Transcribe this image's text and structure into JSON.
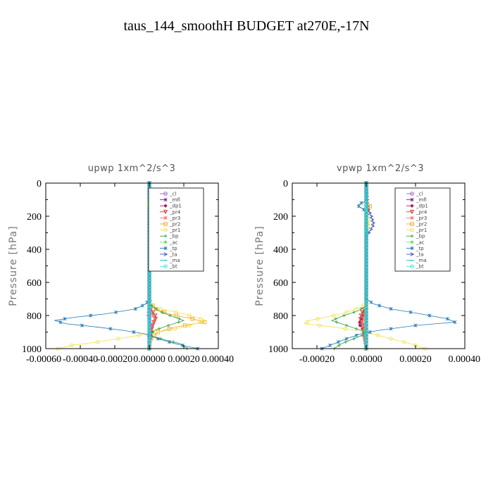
{
  "title": "taus_144_smoothH  BUDGET at270E,-17N",
  "colors": {
    "cl": "#9a5cc6",
    "mfl": "#7a1e8c",
    "dp1": "#a0205a",
    "pr4": "#d9302c",
    "pr3": "#f07070",
    "pr2": "#f5a623",
    "pr1": "#f2e04a",
    "bp": "#2ea043",
    "ac": "#6ee06e",
    "tp": "#1f77b4",
    "ta": "#3f4fc0",
    "ma": "#2bb5c8",
    "bt": "#3ee0e8"
  },
  "chart_data": [
    {
      "type": "line",
      "title": "upwp   1xm^2/s^3",
      "ylabel": "Pressure [hPa]",
      "xlabel": "",
      "xlim": [
        -0.0006,
        0.0004
      ],
      "ylim": [
        1000,
        0
      ],
      "xticks": [
        -0.0006,
        -0.0004,
        -0.0002,
        0.0,
        0.0002,
        0.0004
      ],
      "xtick_labels": [
        "-0.00060",
        "-0.00040",
        "-0.00020",
        "0.00000",
        "0.00020",
        "0.00040"
      ],
      "yticks": [
        0,
        200,
        400,
        600,
        800,
        1000
      ],
      "ytick_labels": [
        "0",
        "200",
        "400",
        "600",
        "800",
        "1000"
      ],
      "legend": {
        "placement": "top-right",
        "entries": [
          "_cl",
          "_mfl",
          "_dp1",
          "_pr4",
          "_pr3",
          "_pr2",
          "_pr1",
          "_bp",
          "_ac",
          "_tp",
          "_ta",
          "_ma",
          "_bt"
        ]
      },
      "series": [
        {
          "key": "cl",
          "name": "_cl",
          "points": [
            [
              0,
              0
            ],
            [
              0,
              1000
            ]
          ]
        },
        {
          "key": "mfl",
          "name": "_mfl",
          "points": [
            [
              0,
              0
            ],
            [
              0,
              1000
            ]
          ]
        },
        {
          "key": "dp1",
          "name": "_dp1",
          "points": [
            [
              0,
              0
            ],
            [
              0,
              700
            ],
            [
              -5e-06,
              800
            ],
            [
              1e-05,
              900
            ],
            [
              0,
              1000
            ]
          ]
        },
        {
          "key": "pr4",
          "name": "_pr4",
          "points": [
            [
              0,
              0
            ],
            [
              0,
              700
            ],
            [
              1e-05,
              760
            ],
            [
              4e-05,
              810
            ],
            [
              2e-05,
              860
            ],
            [
              5e-06,
              920
            ],
            [
              0,
              1000
            ]
          ]
        },
        {
          "key": "pr3",
          "name": "_pr3",
          "points": [
            [
              0,
              0
            ],
            [
              0,
              720
            ],
            [
              1e-05,
              780
            ],
            [
              3e-05,
              820
            ],
            [
              1e-05,
              870
            ],
            [
              0,
              1000
            ]
          ]
        },
        {
          "key": "pr2",
          "name": "_pr2",
          "points": [
            [
              0,
              0
            ],
            [
              0,
              720
            ],
            [
              4e-05,
              760
            ],
            [
              0.00011,
              790
            ],
            [
              0.00025,
              820
            ],
            [
              0.00032,
              840
            ],
            [
              0.00015,
              870
            ],
            [
              5e-05,
              900
            ],
            [
              0,
              950
            ],
            [
              0,
              1000
            ]
          ]
        },
        {
          "key": "pr1",
          "name": "_pr1",
          "points": [
            [
              0,
              0
            ],
            [
              0,
              120
            ],
            [
              -1.5e-05,
              130
            ],
            [
              0,
              140
            ],
            [
              0,
              720
            ],
            [
              2e-05,
              750
            ],
            [
              0.0002,
              790
            ],
            [
              0.00033,
              830
            ],
            [
              0.0002,
              870
            ],
            [
              5e-05,
              900
            ],
            [
              -6e-05,
              920
            ],
            [
              -0.00018,
              940
            ],
            [
              -0.0003,
              960
            ],
            [
              -0.00045,
              980
            ],
            [
              -0.00053,
              1000
            ]
          ]
        },
        {
          "key": "bp",
          "name": "_bp",
          "points": [
            [
              0,
              0
            ],
            [
              0,
              730
            ],
            [
              5e-05,
              770
            ],
            [
              0.00012,
              800
            ],
            [
              0.0002,
              830
            ],
            [
              0.00011,
              860
            ],
            [
              3e-05,
              890
            ],
            [
              0,
              920
            ],
            [
              0.0001,
              950
            ],
            [
              0.00018,
              970
            ],
            [
              0.00022,
              1000
            ]
          ]
        },
        {
          "key": "ac",
          "name": "_ac",
          "points": [
            [
              0,
              0
            ],
            [
              0,
              1000
            ]
          ]
        },
        {
          "key": "tp",
          "name": "_tp",
          "points": [
            [
              0,
              0
            ],
            [
              0,
              100
            ],
            [
              1.5e-05,
              115
            ],
            [
              3.5e-05,
              125
            ],
            [
              2e-05,
              140
            ],
            [
              0,
              160
            ],
            [
              0,
              700
            ],
            [
              -2e-05,
              730
            ],
            [
              -8e-05,
              760
            ],
            [
              -0.00025,
              790
            ],
            [
              -0.00043,
              810
            ],
            [
              -0.00055,
              830
            ],
            [
              -0.00048,
              850
            ],
            [
              -0.0003,
              870
            ],
            [
              -0.00015,
              890
            ],
            [
              -3e-05,
              910
            ],
            [
              5e-05,
              940
            ],
            [
              0.00015,
              970
            ],
            [
              0.00028,
              1000
            ]
          ]
        },
        {
          "key": "ta",
          "name": "_ta",
          "points": [
            [
              0,
              0
            ],
            [
              5e-06,
              100
            ],
            [
              1e-05,
              130
            ],
            [
              0,
              170
            ],
            [
              0,
              1000
            ]
          ]
        },
        {
          "key": "ma",
          "name": "_ma",
          "points": [
            [
              0,
              0
            ],
            [
              0,
              1000
            ]
          ]
        },
        {
          "key": "bt",
          "name": "_bt",
          "points": [
            [
              0,
              0
            ],
            [
              0,
              1000
            ]
          ]
        }
      ]
    },
    {
      "type": "line",
      "title": "vpwp   1xm^2/s^3",
      "ylabel": "Pressure [hPa]",
      "xlabel": "",
      "xlim": [
        -0.0003,
        0.0004
      ],
      "ylim": [
        1000,
        0
      ],
      "xticks": [
        -0.0002,
        0.0,
        0.0002,
        0.0004
      ],
      "xtick_labels": [
        "-0.00020",
        "0.00000",
        "0.00020",
        "0.00040"
      ],
      "yticks": [
        0,
        200,
        400,
        600,
        800,
        1000
      ],
      "ytick_labels": [
        "0",
        "200",
        "400",
        "600",
        "800",
        "1000"
      ],
      "legend": {
        "placement": "top-right",
        "entries": [
          "_cl",
          "_mfl",
          "_dp1",
          "_pr4",
          "_pr3",
          "_pr2",
          "_pr1",
          "_bp",
          "_ac",
          "_tp",
          "_ta",
          "_ma",
          "_bt"
        ]
      },
      "series": [
        {
          "key": "cl",
          "name": "_cl",
          "points": [
            [
              0,
              0
            ],
            [
              0,
              1000
            ]
          ]
        },
        {
          "key": "mfl",
          "name": "_mfl",
          "points": [
            [
              0,
              0
            ],
            [
              0,
              1000
            ]
          ]
        },
        {
          "key": "dp1",
          "name": "_dp1",
          "points": [
            [
              0,
              0
            ],
            [
              0,
              760
            ],
            [
              -1.5e-05,
              810
            ],
            [
              -3e-05,
              850
            ],
            [
              -1e-05,
              890
            ],
            [
              0,
              1000
            ]
          ]
        },
        {
          "key": "pr4",
          "name": "_pr4",
          "points": [
            [
              0,
              0
            ],
            [
              0,
              740
            ],
            [
              -2e-05,
              790
            ],
            [
              -2.5e-05,
              830
            ],
            [
              -1e-05,
              870
            ],
            [
              0,
              1000
            ]
          ]
        },
        {
          "key": "pr3",
          "name": "_pr3",
          "points": [
            [
              0,
              0
            ],
            [
              0,
              760
            ],
            [
              -1e-05,
              810
            ],
            [
              -1.5e-05,
              850
            ],
            [
              0,
              1000
            ]
          ]
        },
        {
          "key": "pr2",
          "name": "_pr2",
          "points": [
            [
              0,
              0
            ],
            [
              0,
              120
            ],
            [
              1e-05,
              130
            ],
            [
              1.5e-05,
              140
            ],
            [
              1e-05,
              155
            ],
            [
              0,
              170
            ],
            [
              0,
              1000
            ]
          ]
        },
        {
          "key": "pr1",
          "name": "_pr1",
          "points": [
            [
              0,
              0
            ],
            [
              0,
              140
            ],
            [
              5e-06,
              200
            ],
            [
              1e-05,
              250
            ],
            [
              0,
              300
            ],
            [
              0,
              720
            ],
            [
              -2e-05,
              750
            ],
            [
              -0.0001,
              790
            ],
            [
              -0.00023,
              830
            ],
            [
              -0.00025,
              850
            ],
            [
              -0.00013,
              870
            ],
            [
              -4e-05,
              890
            ],
            [
              2e-05,
              910
            ],
            [
              0.0001,
              940
            ],
            [
              0.00018,
              970
            ],
            [
              0.00024,
              1000
            ]
          ]
        },
        {
          "key": "bp",
          "name": "_bp",
          "points": [
            [
              0,
              0
            ],
            [
              0,
              740
            ],
            [
              -3e-05,
              770
            ],
            [
              -9e-05,
              800
            ],
            [
              -0.00014,
              830
            ],
            [
              -8e-05,
              860
            ],
            [
              -2e-05,
              890
            ],
            [
              0,
              910
            ],
            [
              -5e-05,
              940
            ],
            [
              -0.0001,
              970
            ],
            [
              -0.00013,
              1000
            ]
          ]
        },
        {
          "key": "ac",
          "name": "_ac",
          "points": [
            [
              0,
              0
            ],
            [
              0,
              1000
            ]
          ]
        },
        {
          "key": "tp",
          "name": "_tp",
          "points": [
            [
              0,
              0
            ],
            [
              0,
              110
            ],
            [
              -2e-05,
              120
            ],
            [
              -3.5e-05,
              135
            ],
            [
              -2e-05,
              150
            ],
            [
              0,
              170
            ],
            [
              0,
              700
            ],
            [
              3e-05,
              730
            ],
            [
              0.0001,
              760
            ],
            [
              0.00022,
              790
            ],
            [
              0.00033,
              820
            ],
            [
              0.00036,
              840
            ],
            [
              0.0002,
              860
            ],
            [
              5e-05,
              890
            ],
            [
              -2e-05,
              910
            ],
            [
              -8e-05,
              940
            ],
            [
              -0.00013,
              970
            ],
            [
              -0.00018,
              1000
            ]
          ]
        },
        {
          "key": "ta",
          "name": "_ta",
          "points": [
            [
              0,
              0
            ],
            [
              5e-06,
              150
            ],
            [
              2e-05,
              200
            ],
            [
              3e-05,
              250
            ],
            [
              1.5e-05,
              290
            ],
            [
              0,
              320
            ],
            [
              0,
              1000
            ]
          ]
        },
        {
          "key": "ma",
          "name": "_ma",
          "points": [
            [
              0,
              0
            ],
            [
              0,
              1000
            ]
          ]
        },
        {
          "key": "bt",
          "name": "_bt",
          "points": [
            [
              0,
              0
            ],
            [
              0,
              1000
            ]
          ]
        }
      ]
    }
  ]
}
